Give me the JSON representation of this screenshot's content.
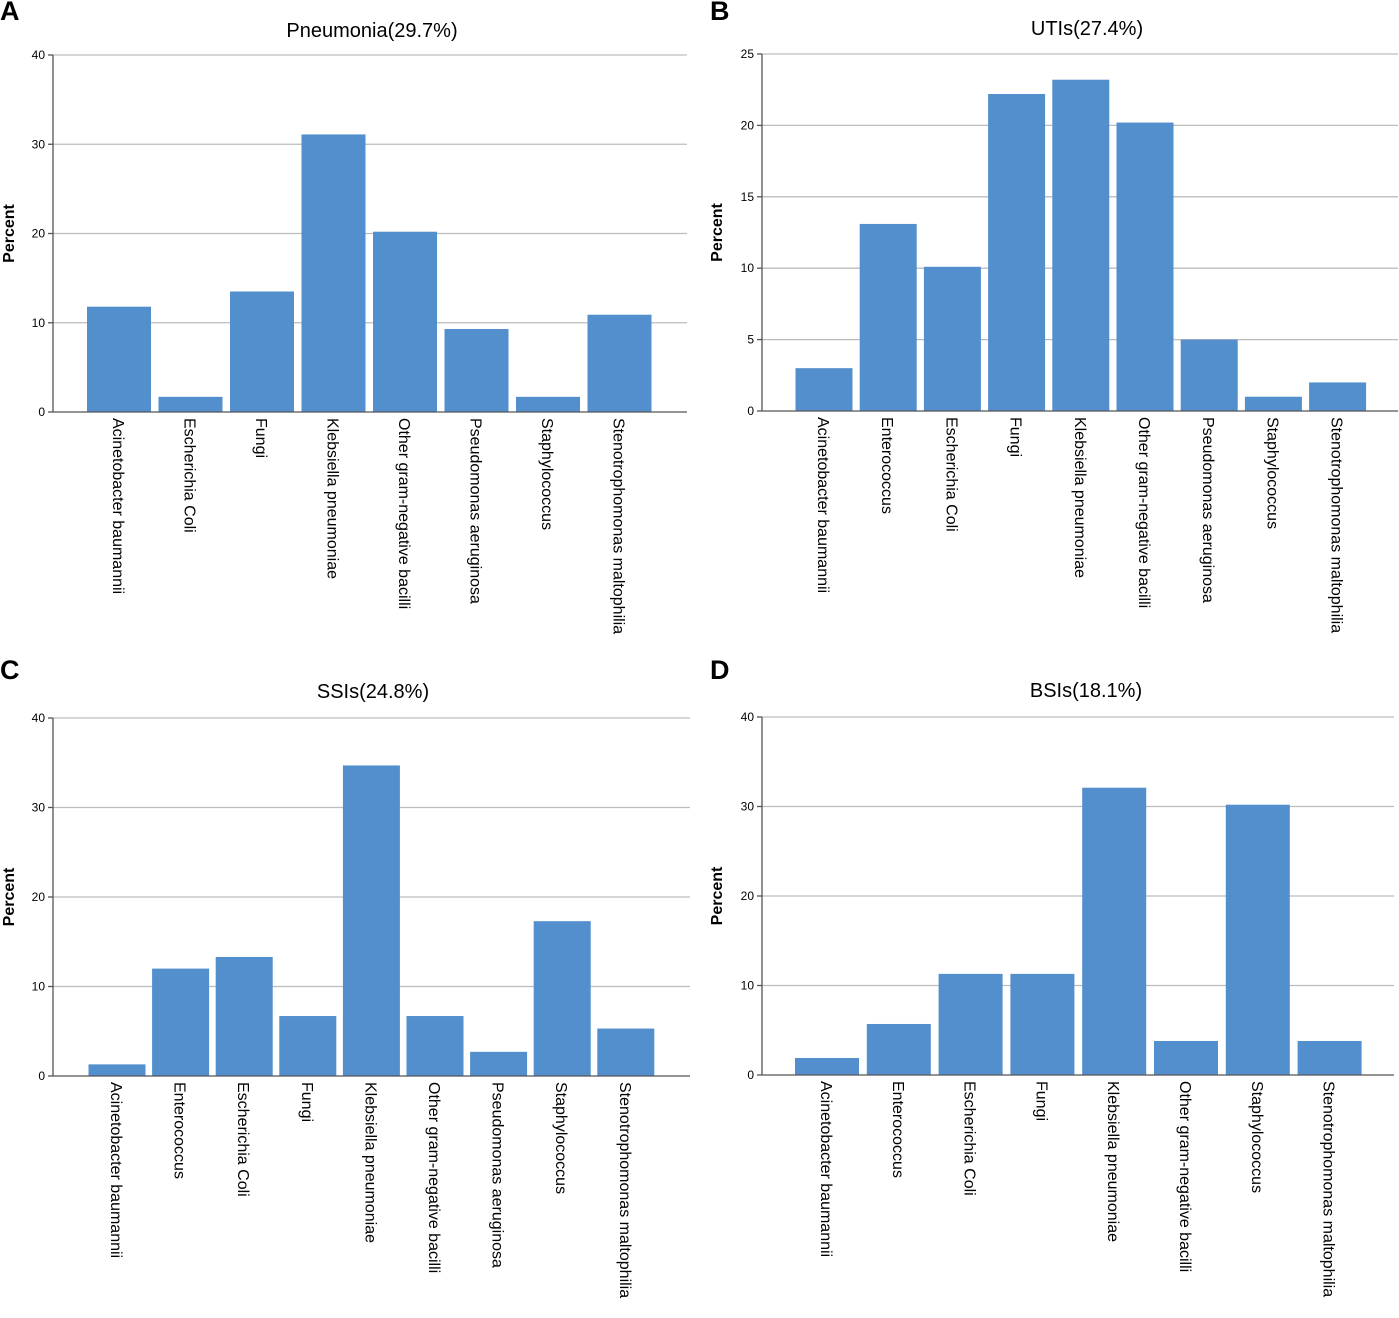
{
  "chart_data": [
    {
      "panel_label": "A",
      "type": "bar",
      "title": "Pneumonia(29.7%)",
      "xlabel": "",
      "ylabel": "Percent",
      "ylim": [
        0,
        40
      ],
      "yticks": [
        0,
        10,
        20,
        30,
        40
      ],
      "grid": true,
      "bar_color": "#528fcc",
      "categories": [
        "Acinetobacter baumannii",
        "Escherichia Coli",
        "Fungi",
        "Klebsiella pneumoniae",
        "Other gram-negative bacilli",
        "Pseudomonas aeruginosa",
        "Staphylococcus",
        "Stenotrophomonas maltophilia"
      ],
      "values": [
        11.8,
        1.7,
        13.5,
        31.1,
        20.2,
        9.3,
        1.7,
        10.9
      ]
    },
    {
      "panel_label": "B",
      "type": "bar",
      "title": "UTIs(27.4%)",
      "xlabel": "",
      "ylabel": "Percent",
      "ylim": [
        0,
        25
      ],
      "yticks": [
        0,
        5,
        10,
        15,
        20,
        25
      ],
      "grid": true,
      "bar_color": "#528fcc",
      "categories": [
        "Acinetobacter baumannii",
        "Enterococcus",
        "Escherichia Coli",
        "Fungi",
        "Klebsiella pneumoniae",
        "Other gram-negative bacilli",
        "Pseudomonas aeruginosa",
        "Staphylococcus",
        "Stenotrophomonas maltophilia"
      ],
      "values": [
        3.0,
        13.1,
        10.1,
        22.2,
        23.2,
        20.2,
        5.0,
        1.0,
        2.0
      ]
    },
    {
      "panel_label": "C",
      "type": "bar",
      "title": "SSIs(24.8%)",
      "xlabel": "",
      "ylabel": "Percent",
      "ylim": [
        0,
        40
      ],
      "yticks": [
        0,
        10,
        20,
        30,
        40
      ],
      "grid": true,
      "bar_color": "#528fcc",
      "categories": [
        "Acinetobacter baumannii",
        "Enterococcus",
        "Escherichia Coli",
        "Fungi",
        "Klebsiella pneumoniae",
        "Other gram-negative bacilli",
        "Pseudomonas aeruginosa",
        "Staphylococcus",
        "Stenotrophomonas maltophilia"
      ],
      "values": [
        1.3,
        12.0,
        13.3,
        6.7,
        34.7,
        6.7,
        2.7,
        17.3,
        5.3
      ]
    },
    {
      "panel_label": "D",
      "type": "bar",
      "title": "BSIs(18.1%)",
      "xlabel": "",
      "ylabel": "Percent",
      "ylim": [
        0,
        40
      ],
      "yticks": [
        0,
        10,
        20,
        30,
        40
      ],
      "grid": true,
      "bar_color": "#528fcc",
      "categories": [
        "Acinetobacter baumannii",
        "Enterococcus",
        "Escherichia Coli",
        "Fungi",
        "Klebsiella pneumoniae",
        "Other gram-negative bacilli",
        "Staphylococcus",
        "Stenotrophomonas maltophilia"
      ],
      "values": [
        1.9,
        5.7,
        11.3,
        11.3,
        32.1,
        3.8,
        30.2,
        3.8
      ]
    }
  ]
}
